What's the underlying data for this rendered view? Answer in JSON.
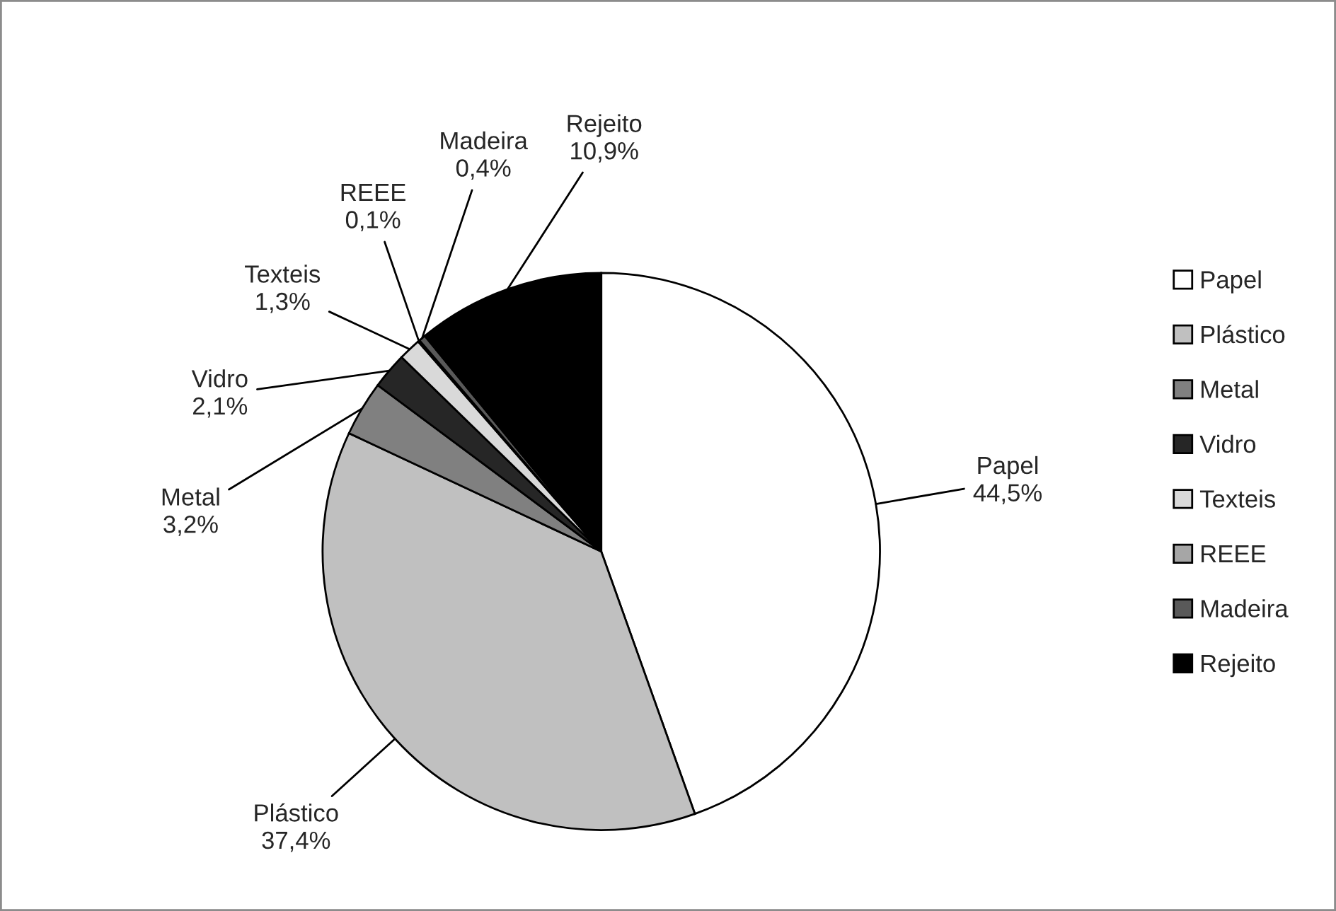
{
  "chart_data": {
    "type": "pie",
    "categories": [
      "Papel",
      "Plástico",
      "Metal",
      "Vidro",
      "Texteis",
      "REEE",
      "Madeira",
      "Rejeito"
    ],
    "values": [
      44.5,
      37.4,
      3.2,
      2.1,
      1.3,
      0.1,
      0.4,
      10.9
    ],
    "colors": [
      "#ffffff",
      "#c0c0c0",
      "#808080",
      "#262626",
      "#d9d9d9",
      "#a6a6a6",
      "#595959",
      "#000000"
    ],
    "value_labels": [
      "44,5%",
      "37,4%",
      "3,2%",
      "2,1%",
      "1,3%",
      "0,1%",
      "0,4%",
      "10,9%"
    ],
    "legend": "right"
  }
}
